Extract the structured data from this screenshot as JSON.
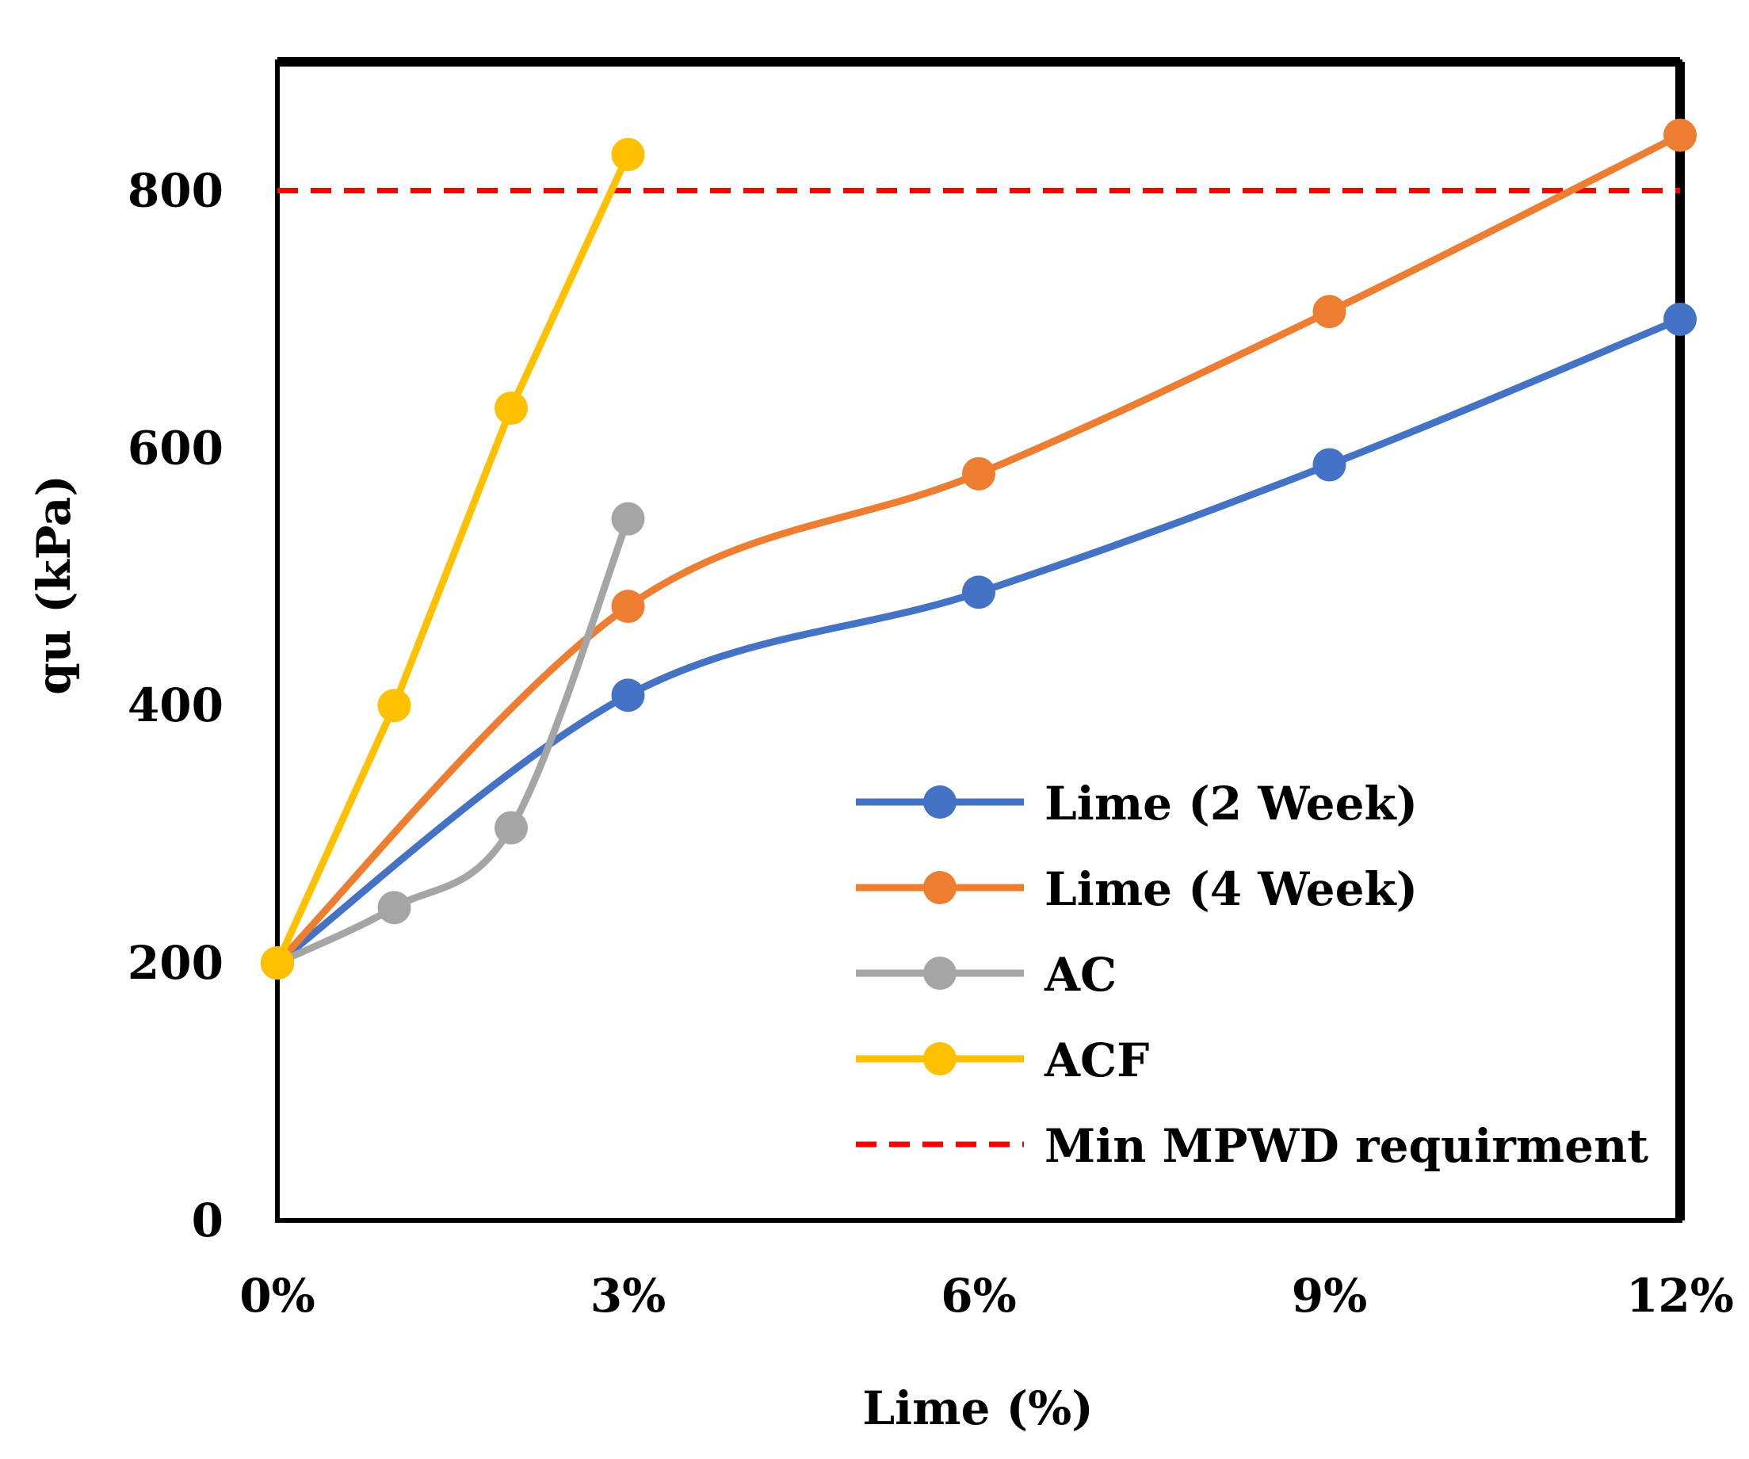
{
  "chart_data": {
    "type": "line",
    "title": "",
    "xlabel": "Lime (%)",
    "ylabel": "qu (kPa)",
    "x_ticks": [
      "0%",
      "3%",
      "6%",
      "9%",
      "12%"
    ],
    "x_tick_values": [
      0,
      3,
      6,
      9,
      12
    ],
    "xlim": [
      0,
      12
    ],
    "y_ticks": [
      "0",
      "200",
      "400",
      "600",
      "800"
    ],
    "y_tick_values": [
      0,
      200,
      400,
      600,
      800
    ],
    "ylim": [
      0,
      900
    ],
    "grid": false,
    "legend_position": "bottom-right",
    "series": [
      {
        "name": "Lime (2 Week)",
        "color": "#4472C4",
        "smooth": true,
        "x": [
          0,
          3,
          6,
          9,
          12
        ],
        "y": [
          200,
          408,
          488,
          587,
          700
        ]
      },
      {
        "name": "Lime (4 Week)",
        "color": "#ED7D31",
        "smooth": true,
        "x": [
          0,
          3,
          6,
          9,
          12
        ],
        "y": [
          200,
          477,
          580,
          706,
          843
        ]
      },
      {
        "name": "AC",
        "color": "#A5A5A5",
        "smooth": true,
        "x": [
          0,
          1,
          2,
          3
        ],
        "y": [
          200,
          243,
          305,
          545
        ]
      },
      {
        "name": "ACF",
        "color": "#FFC000",
        "smooth": false,
        "x": [
          0,
          1,
          2,
          3
        ],
        "y": [
          200,
          400,
          631,
          828
        ]
      }
    ],
    "reference_lines": [
      {
        "name": "Min MPWD requirment",
        "color": "#FF0000",
        "style": "dashed",
        "y": 800
      }
    ]
  }
}
